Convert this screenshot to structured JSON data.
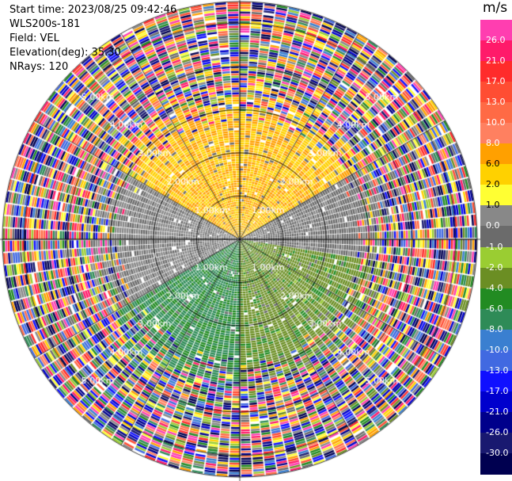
{
  "info": {
    "start_time": "Start time: 2023/08/25 09:42:46",
    "instrument": "WLS200s-181",
    "field": "Field: VEL",
    "elevation": "Elevation(deg): 35.30",
    "nrays": "NRays: 120"
  },
  "colorbar": {
    "unit": "m/s",
    "ticks": [
      "26.0",
      "21.0",
      "17.0",
      "13.0",
      "10.0",
      "8.0",
      "6.0",
      "2.0",
      "1.0",
      "0.0",
      "-1.0",
      "-2.0",
      "-4.0",
      "-6.0",
      "-8.0",
      "-10.0",
      "-13.0",
      "-17.0",
      "-21.0",
      "-26.0",
      "-30.0"
    ],
    "colors": [
      "#ff3eb0",
      "#ff1a6a",
      "#ff2b2b",
      "#ff4d33",
      "#ff6a45",
      "#ff8060",
      "#ffa000",
      "#ffd100",
      "#ffff33",
      "#888888",
      "#6b6b6b",
      "#9acd32",
      "#6b8e23",
      "#228b22",
      "#2e8b57",
      "#3a7fd0",
      "#4169e1",
      "#1010ff",
      "#0000cd",
      "#00008b",
      "#191970",
      "#000050"
    ]
  },
  "chart_data": {
    "type": "ppi",
    "field": "VEL",
    "units": "m/s",
    "vmin": -30.0,
    "vmax": 26.0,
    "nrays": 120,
    "range_rings_km": [
      1.0,
      2.0,
      3.0,
      4.0,
      5.0
    ],
    "range_ring_labels": [
      "1.00km",
      "2.00km",
      "3.00km",
      "4.00km",
      "5.00km"
    ],
    "max_range_km": 5.5,
    "velocity_pattern": {
      "description_sectors": [
        {
          "azimuth_from": 300,
          "azimuth_to": 60,
          "typical_velocity": 8.0
        },
        {
          "azimuth_from": 60,
          "azimuth_to": 100,
          "typical_velocity": 0.0
        },
        {
          "azimuth_from": 100,
          "azimuth_to": 180,
          "typical_velocity": -6.0
        },
        {
          "azimuth_from": 180,
          "azimuth_to": 240,
          "typical_velocity": -10.0
        },
        {
          "azimuth_from": 240,
          "azimuth_to": 300,
          "typical_velocity": 1.0
        }
      ],
      "clean_range_km": 2.6
    }
  }
}
